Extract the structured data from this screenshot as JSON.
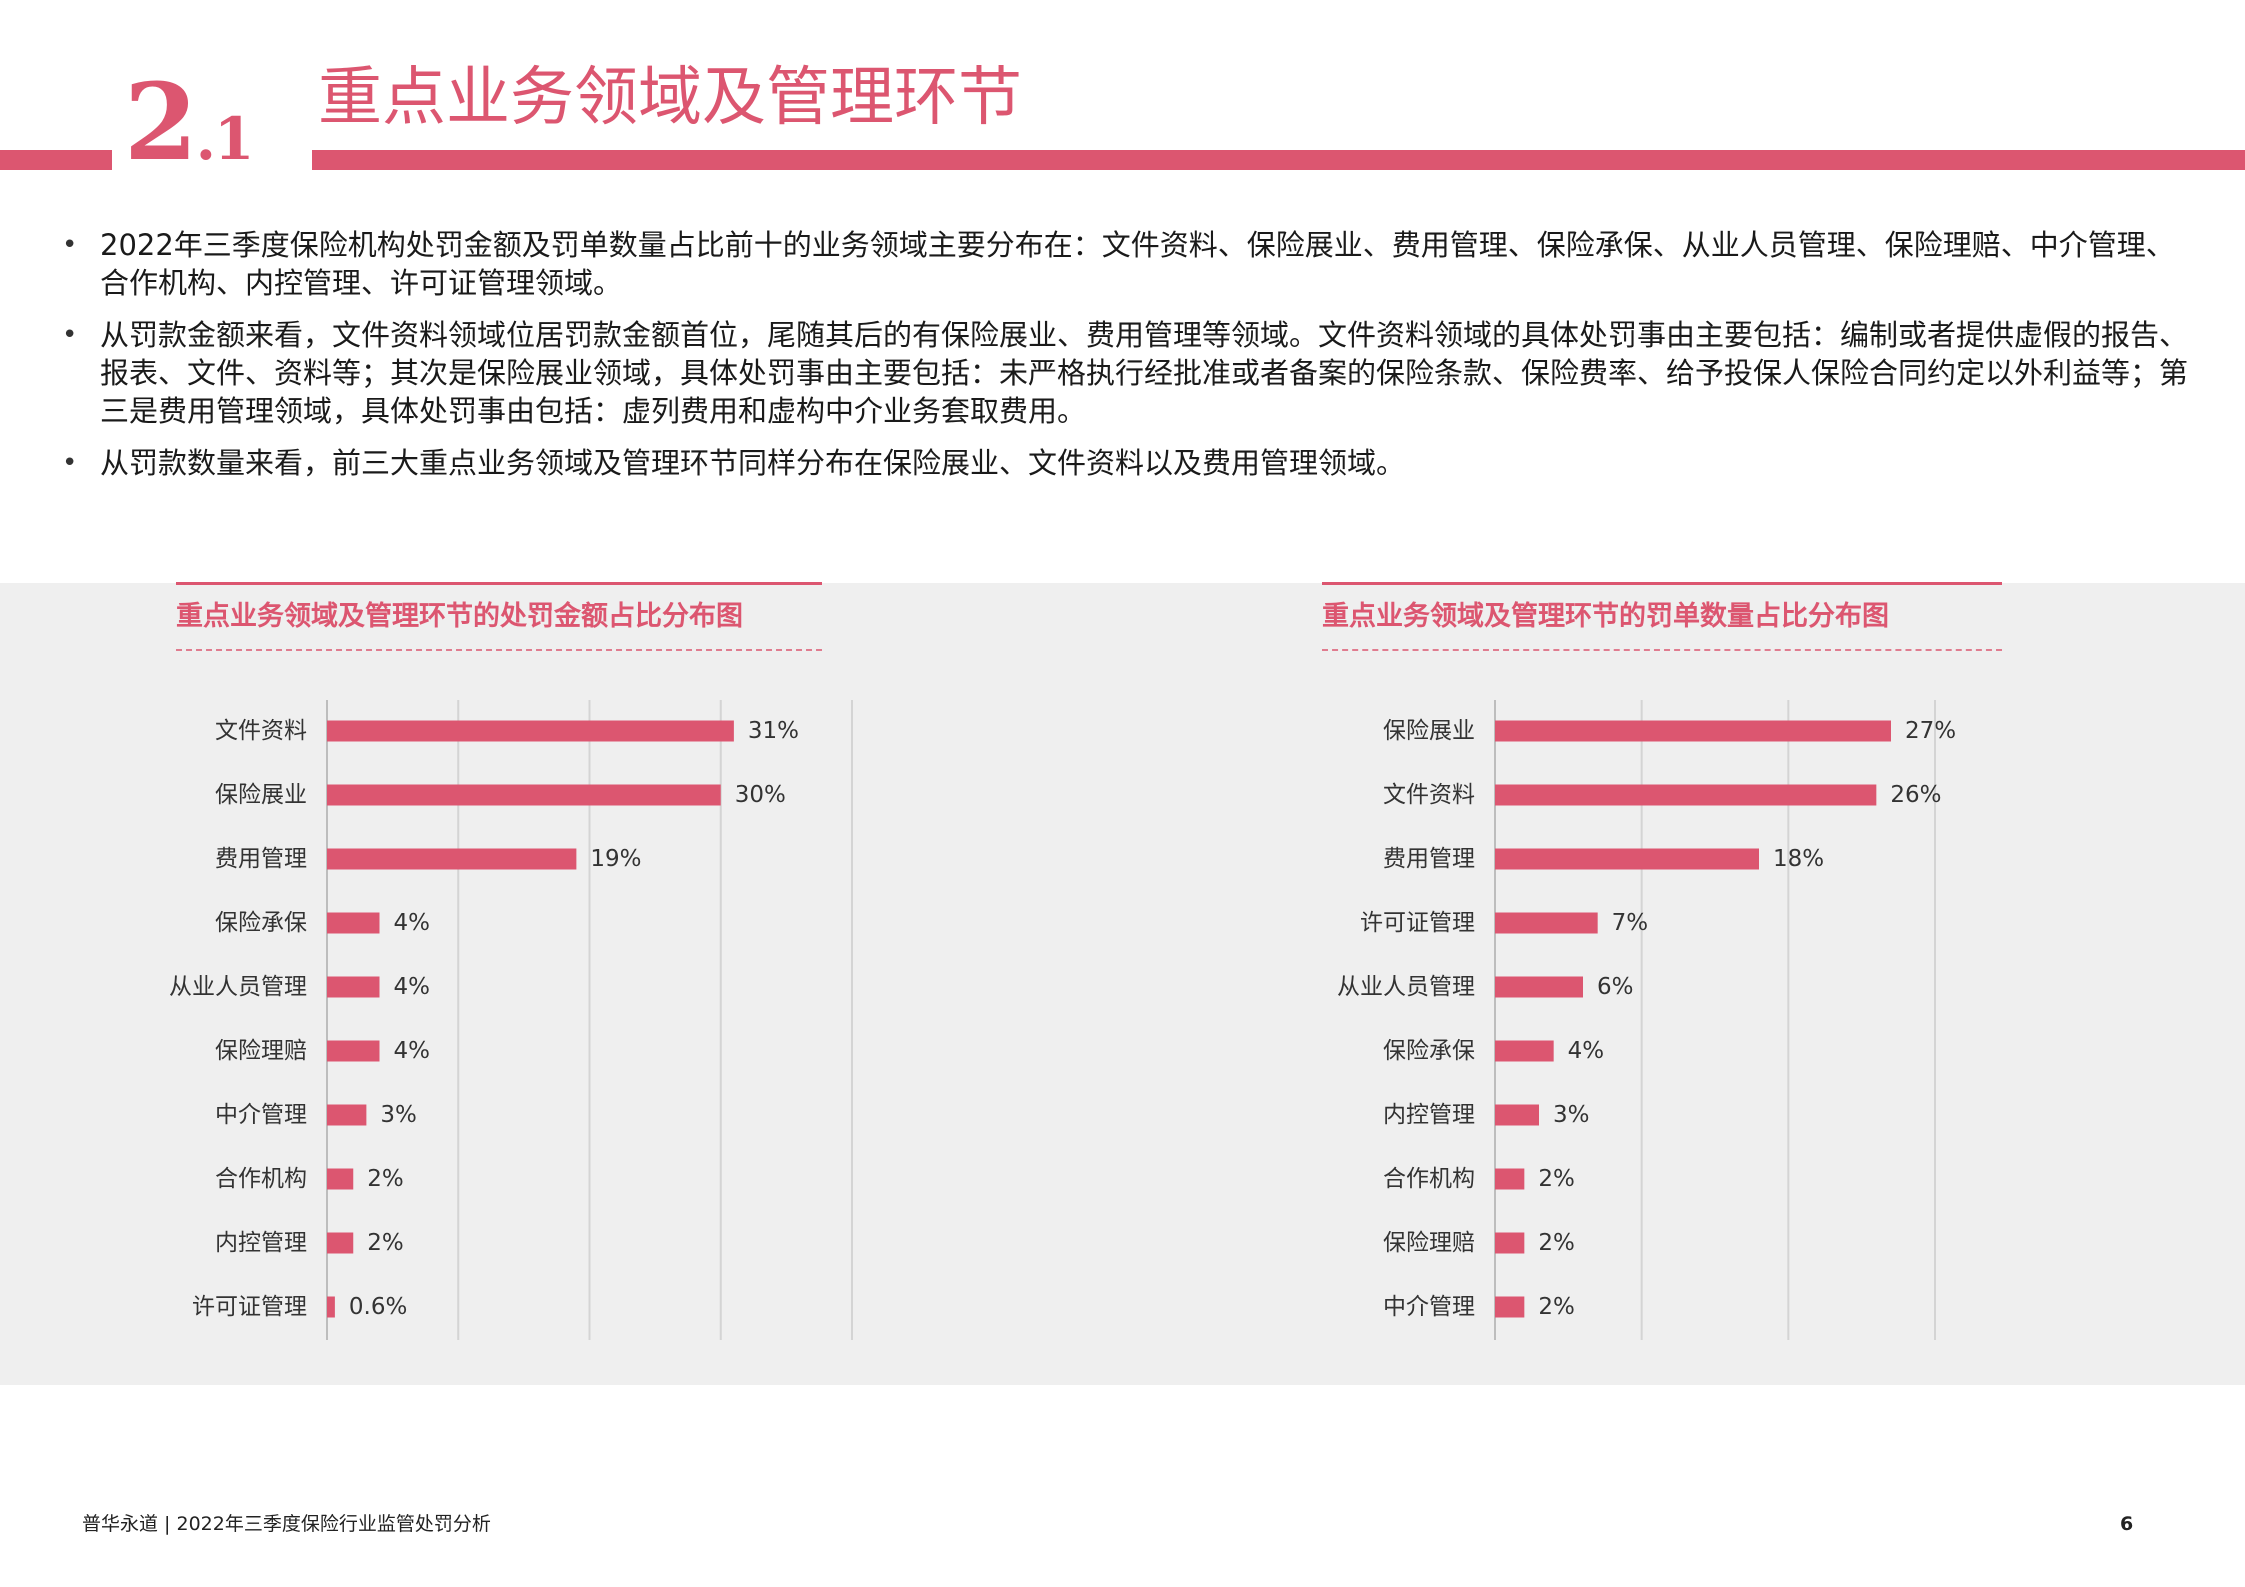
{
  "header": {
    "section_number": "2",
    "section_sub": ".1",
    "title": "重点业务领域及管理环节"
  },
  "bullets": [
    "2022年三季度保险机构处罚金额及罚单数量占比前十的业务领域主要分布在：文件资料、保险展业、费用管理、保险承保、从业人员管理、保险理赔、中介管理、合作机构、内控管理、许可证管理领域。",
    "从罚款金额来看，文件资料领域位居罚款金额首位，尾随其后的有保险展业、费用管理等领域。文件资料领域的具体处罚事由主要包括：编制或者提供虚假的报告、报表、文件、资料等；其次是保险展业领域，具体处罚事由主要包括：未严格执行经批准或者备案的保险条款、保险费率、给予投保人保险合同约定以外利益等；第三是费用管理领域，具体处罚事由包括：虚列费用和虚构中介业务套取费用。",
    "从罚款数量来看，前三大重点业务领域及管理环节同样分布在保险展业、文件资料以及费用管理领域。"
  ],
  "colors": {
    "accent": "#dc5670",
    "chart_bg": "#efefef",
    "grid": "#d4d4d4"
  },
  "chart_data": [
    {
      "type": "bar",
      "orientation": "horizontal",
      "title": "重点业务领域及管理环节的处罚金额占比分布图",
      "categories": [
        "文件资料",
        "保险展业",
        "费用管理",
        "保险承保",
        "从业人员管理",
        "保险理赔",
        "中介管理",
        "合作机构",
        "内控管理",
        "许可证管理"
      ],
      "values": [
        31,
        30,
        19,
        4,
        4,
        4,
        3,
        2,
        2,
        0.6
      ],
      "value_labels": [
        "31%",
        "30%",
        "19%",
        "4%",
        "4%",
        "4%",
        "3%",
        "2%",
        "2%",
        "0.6%"
      ],
      "xlim": [
        0,
        40
      ],
      "grid": true
    },
    {
      "type": "bar",
      "orientation": "horizontal",
      "title": "重点业务领域及管理环节的罚单数量占比分布图",
      "categories": [
        "保险展业",
        "文件资料",
        "费用管理",
        "许可证管理",
        "从业人员管理",
        "保险承保",
        "内控管理",
        "合作机构",
        "保险理赔",
        "中介管理"
      ],
      "values": [
        27,
        26,
        18,
        7,
        6,
        4,
        3,
        2,
        2,
        2
      ],
      "value_labels": [
        "27%",
        "26%",
        "18%",
        "7%",
        "6%",
        "4%",
        "3%",
        "2%",
        "2%",
        "2%"
      ],
      "xlim": [
        0,
        30
      ],
      "grid": true
    }
  ],
  "footer": {
    "text": "普华永道 | 2022年三季度保险行业监管处罚分析",
    "page_number": "6"
  }
}
